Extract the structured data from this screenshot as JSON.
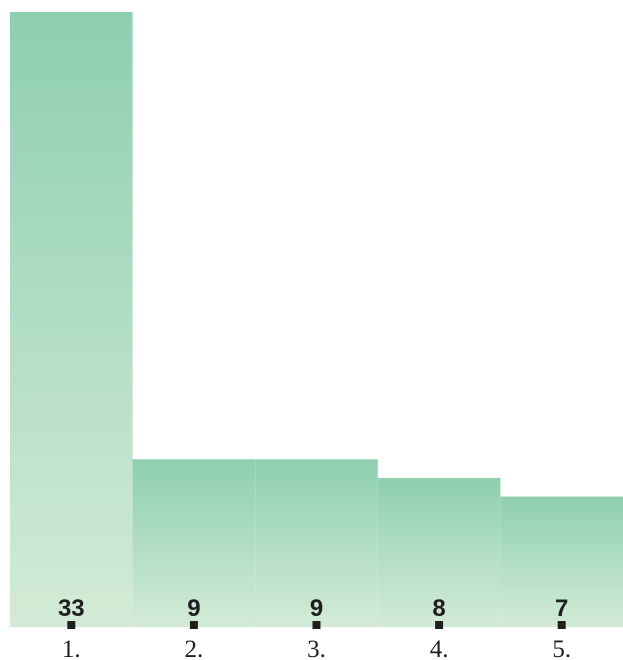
{
  "chart_data": {
    "type": "bar",
    "categories": [
      "1.",
      "2.",
      "3.",
      "4.",
      "5."
    ],
    "values": [
      33,
      9,
      9,
      8,
      7
    ],
    "title": "",
    "xlabel": "",
    "ylabel": "",
    "ylim": [
      0,
      33
    ],
    "grid": false,
    "legend": "none",
    "colors": {
      "bar_top": "#8ecfb0",
      "bar_bottom": "#d3ebd6",
      "text": "#1f1f1f",
      "axis": "#1f1f1f"
    }
  }
}
